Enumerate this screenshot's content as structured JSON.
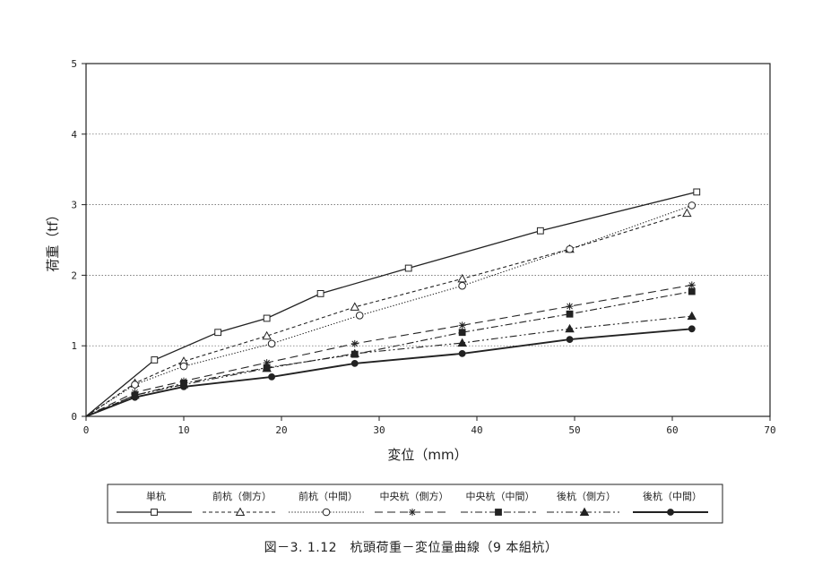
{
  "caption": "図－3. 1.12　杭頭荷重－変位量曲線（9 本組杭）",
  "chart_data": {
    "type": "line",
    "xlabel": "変位（mm）",
    "ylabel": "荷重（tf）",
    "xlim": [
      0,
      70
    ],
    "ylim": [
      0,
      5
    ],
    "xticks": [
      "0",
      "10",
      "20",
      "30",
      "40",
      "50",
      "60",
      "70"
    ],
    "yticks": [
      "0",
      "1",
      "2",
      "3",
      "4",
      "5"
    ],
    "grid": "horizontal-dotted",
    "legend_position": "bottom",
    "series": [
      {
        "name": "単杭",
        "line": "solid",
        "marker": "open-square",
        "points": [
          [
            0,
            0
          ],
          [
            7,
            0.8
          ],
          [
            13.5,
            1.19
          ],
          [
            18.5,
            1.39
          ],
          [
            24,
            1.74
          ],
          [
            33,
            2.1
          ],
          [
            46.5,
            2.63
          ],
          [
            62.5,
            3.18
          ]
        ]
      },
      {
        "name": "前杭（側方）",
        "line": "dashed",
        "marker": "open-triangle",
        "points": [
          [
            0,
            0
          ],
          [
            5,
            0.47
          ],
          [
            10,
            0.78
          ],
          [
            18.5,
            1.14
          ],
          [
            27.5,
            1.55
          ],
          [
            38.5,
            1.95
          ],
          [
            49.5,
            2.37
          ],
          [
            61.5,
            2.88
          ]
        ]
      },
      {
        "name": "前杭（中間）",
        "line": "dotted",
        "marker": "open-circle",
        "points": [
          [
            0,
            0
          ],
          [
            5,
            0.45
          ],
          [
            10,
            0.71
          ],
          [
            19,
            1.03
          ],
          [
            28,
            1.43
          ],
          [
            38.5,
            1.85
          ],
          [
            49.5,
            2.37
          ],
          [
            62,
            2.99
          ]
        ]
      },
      {
        "name": "中央杭（側方）",
        "line": "long-dash",
        "marker": "asterisk",
        "points": [
          [
            0,
            0
          ],
          [
            5,
            0.34
          ],
          [
            10,
            0.5
          ],
          [
            18.5,
            0.76
          ],
          [
            27.5,
            1.03
          ],
          [
            38.5,
            1.29
          ],
          [
            49.5,
            1.56
          ],
          [
            62,
            1.86
          ]
        ]
      },
      {
        "name": "中央杭（中間）",
        "line": "dash-dot",
        "marker": "filled-square",
        "points": [
          [
            0,
            0
          ],
          [
            5,
            0.3
          ],
          [
            10,
            0.47
          ],
          [
            18.5,
            0.69
          ],
          [
            27.5,
            0.88
          ],
          [
            38.5,
            1.19
          ],
          [
            49.5,
            1.45
          ],
          [
            62,
            1.77
          ]
        ]
      },
      {
        "name": "後杭（側方）",
        "line": "dash-dot-dot",
        "marker": "filled-triangle",
        "points": [
          [
            0,
            0
          ],
          [
            5,
            0.3
          ],
          [
            10,
            0.45
          ],
          [
            18.5,
            0.68
          ],
          [
            27.5,
            0.89
          ],
          [
            38.5,
            1.04
          ],
          [
            49.5,
            1.24
          ],
          [
            62,
            1.42
          ]
        ]
      },
      {
        "name": "後杭（中間）",
        "line": "solid-bold",
        "marker": "filled-circle",
        "points": [
          [
            0,
            0
          ],
          [
            5,
            0.27
          ],
          [
            10,
            0.42
          ],
          [
            19,
            0.56
          ],
          [
            27.5,
            0.75
          ],
          [
            38.5,
            0.89
          ],
          [
            49.5,
            1.09
          ],
          [
            62,
            1.24
          ]
        ]
      }
    ]
  }
}
